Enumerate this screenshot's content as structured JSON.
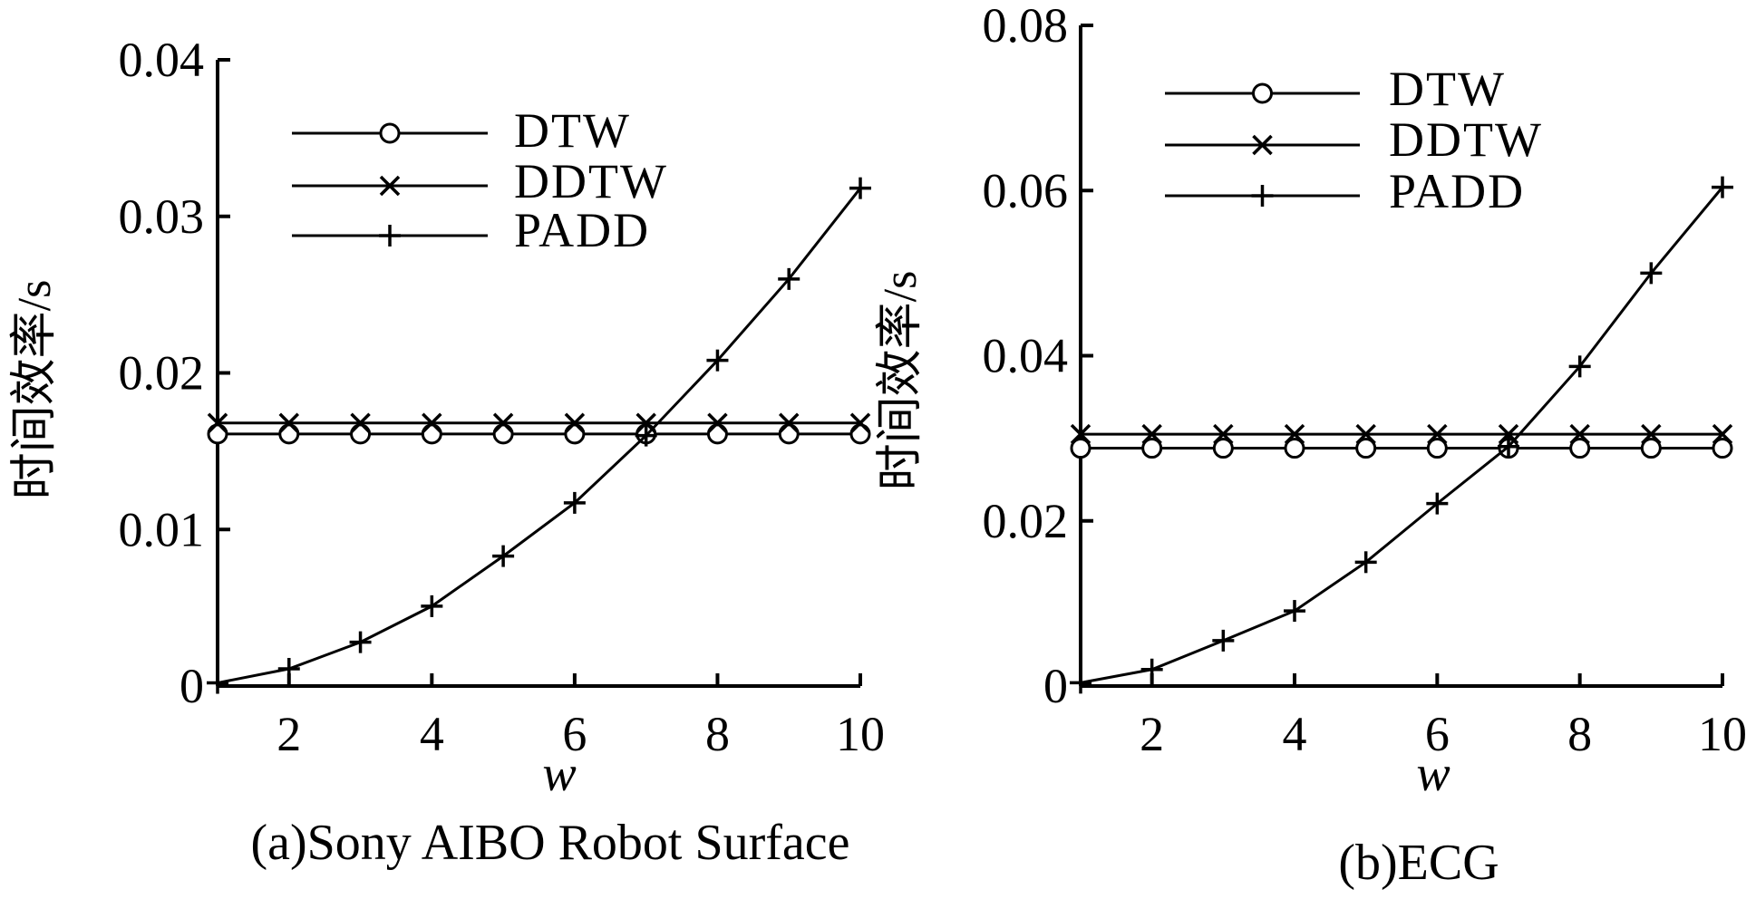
{
  "chart_data": [
    {
      "type": "line",
      "caption": "(a)Sony AIBO Robot Surface",
      "xlabel": "w",
      "ylabel": "时间效率/s",
      "xlim": [
        1,
        10
      ],
      "ylim": [
        0,
        0.04
      ],
      "xticks": [
        2,
        4,
        6,
        8,
        10
      ],
      "xtick_labels": [
        "2",
        "4",
        "6",
        "8",
        "10"
      ],
      "yticks": [
        0,
        0.01,
        0.02,
        0.03,
        0.04
      ],
      "ytick_labels": [
        "0",
        "0.01",
        "0.02",
        "0.03",
        "0.04"
      ],
      "legend_position": "top-left",
      "x": [
        1,
        2,
        3,
        4,
        5,
        6,
        7,
        8,
        9,
        10
      ],
      "series": [
        {
          "name": "DTW",
          "marker": "circle",
          "values": [
            0.0161,
            0.0161,
            0.0161,
            0.0161,
            0.0161,
            0.0161,
            0.0161,
            0.0161,
            0.0161,
            0.0161
          ]
        },
        {
          "name": "DDTW",
          "marker": "x",
          "values": [
            0.0168,
            0.0168,
            0.0168,
            0.0168,
            0.0168,
            0.0168,
            0.0168,
            0.0168,
            0.0168,
            0.0168
          ]
        },
        {
          "name": "PADD",
          "marker": "plus",
          "values": [
            0.0002,
            0.0011,
            0.0028,
            0.0051,
            0.0083,
            0.0117,
            0.016,
            0.0208,
            0.026,
            0.0318
          ]
        }
      ]
    },
    {
      "type": "line",
      "caption": "(b)ECG",
      "xlabel": "w",
      "ylabel": "时间效率/s",
      "xlim": [
        1,
        10
      ],
      "ylim": [
        0,
        0.08
      ],
      "xticks": [
        2,
        4,
        6,
        8,
        10
      ],
      "xtick_labels": [
        "2",
        "4",
        "6",
        "8",
        "10"
      ],
      "yticks": [
        0,
        0.02,
        0.04,
        0.06,
        0.08
      ],
      "ytick_labels": [
        "0",
        "0.02",
        "0.04",
        "0.06",
        "0.08"
      ],
      "legend_position": "top-left",
      "x": [
        1,
        2,
        3,
        4,
        5,
        6,
        7,
        8,
        9,
        10
      ],
      "series": [
        {
          "name": "DTW",
          "marker": "circle",
          "values": [
            0.0288,
            0.0288,
            0.0288,
            0.0288,
            0.0288,
            0.0288,
            0.0288,
            0.0288,
            0.0288,
            0.0288
          ]
        },
        {
          "name": "DDTW",
          "marker": "x",
          "values": [
            0.0305,
            0.0305,
            0.0305,
            0.0305,
            0.0305,
            0.0305,
            0.0305,
            0.0305,
            0.0305,
            0.0305
          ]
        },
        {
          "name": "PADD",
          "marker": "plus",
          "values": [
            0.0004,
            0.002,
            0.0055,
            0.0091,
            0.015,
            0.0221,
            0.029,
            0.0387,
            0.05,
            0.0604
          ]
        }
      ]
    }
  ]
}
